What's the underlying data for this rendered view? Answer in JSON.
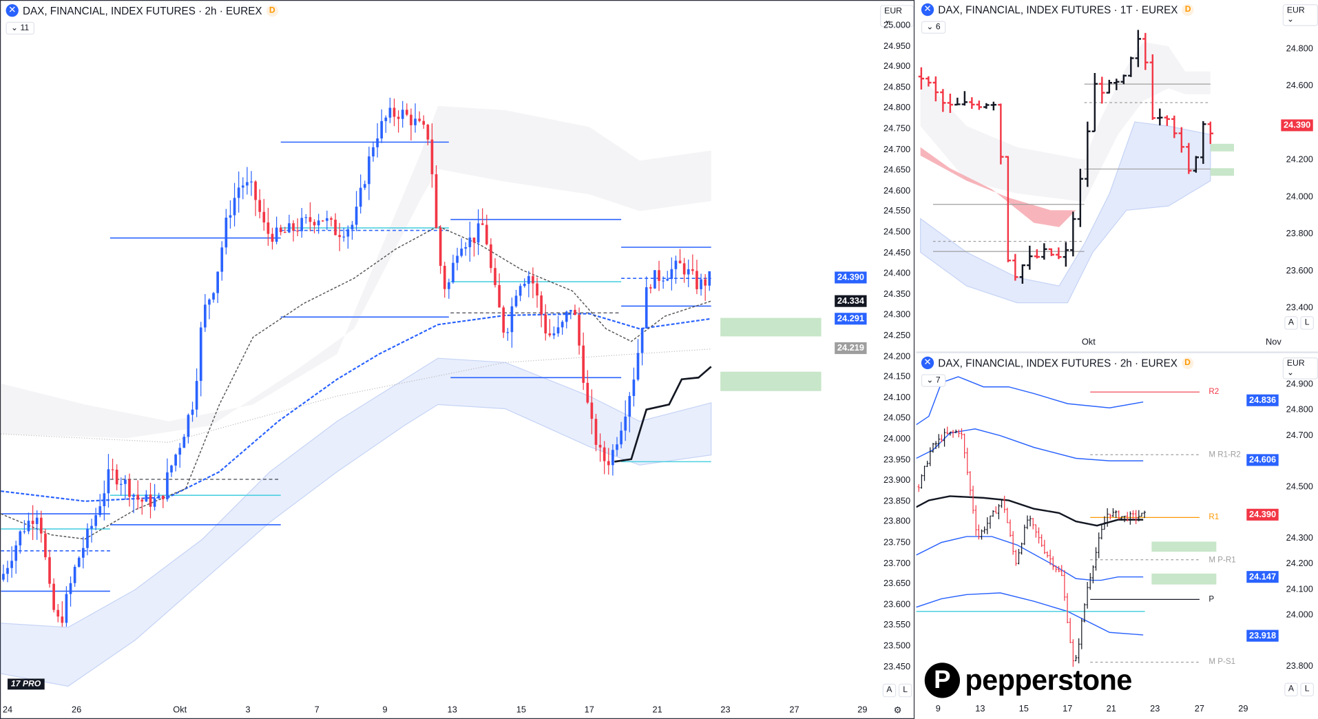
{
  "colors": {
    "up": "#131722",
    "down": "#f23645",
    "accent": "#2962ff",
    "cyan": "#4dd0e1",
    "zone": "#c8e6c9",
    "pivot_r": "#f23645",
    "pivot_r1": "#ff9800"
  },
  "left": {
    "title": "DAX, FINANCIAL, INDEX FUTURES · 2h · EUREX",
    "badge": "D",
    "collapse": "11",
    "currency": "EUR",
    "axis": [
      "25.000",
      "24.950",
      "24.900",
      "24.850",
      "24.800",
      "24.750",
      "24.700",
      "24.650",
      "24.600",
      "24.550",
      "24.500",
      "24.450",
      "24.400",
      "24.350",
      "24.300",
      "24.250",
      "24.200",
      "24.150",
      "24.100",
      "24.050",
      "24.000",
      "23.950",
      "23.900",
      "23.850",
      "23.800",
      "23.750",
      "23.700",
      "23.650",
      "23.600",
      "23.550",
      "23.500",
      "23.450"
    ],
    "price_labels": [
      {
        "text": "24.390",
        "value": 24390,
        "color": "#2962ff"
      },
      {
        "text": "24.334",
        "value": 24334,
        "color": "#131722"
      },
      {
        "text": "24.291",
        "value": 24291,
        "color": "#2962ff"
      },
      {
        "text": "24.219",
        "value": 24219,
        "color": "#9e9e9e"
      }
    ],
    "time_axis": [
      "24",
      "26",
      "Okt",
      "3",
      "7",
      "9",
      "13",
      "15",
      "17",
      "21",
      "23",
      "27",
      "29"
    ],
    "btn_a": "A",
    "btn_l": "L",
    "logo": "TV PRO"
  },
  "top_right": {
    "title": "DAX, FINANCIAL, INDEX FUTURES · 1T · EUREX",
    "badge": "D",
    "collapse": "6",
    "currency": "EUR",
    "axis": [
      {
        "t": "24.800",
        "v": 24800
      },
      {
        "t": "24.600",
        "v": 24600
      },
      {
        "t": "24.200",
        "v": 24200
      },
      {
        "t": "24.000",
        "v": 24000
      },
      {
        "t": "23.800",
        "v": 23800
      },
      {
        "t": "23.600",
        "v": 23600
      },
      {
        "t": "23.400",
        "v": 23400
      }
    ],
    "price_label": "24.390",
    "time_axis": [
      "Okt",
      "Nov"
    ],
    "btn_a": "A",
    "btn_l": "L"
  },
  "bottom_right": {
    "title": "DAX, FINANCIAL, INDEX FUTURES · 2h · EUREX",
    "badge": "D",
    "collapse": "7",
    "currency": "EUR",
    "axis": [
      {
        "t": "24.900",
        "v": 24900
      },
      {
        "t": "24.800",
        "v": 24800
      },
      {
        "t": "24.700",
        "v": 24700
      },
      {
        "t": "24.500",
        "v": 24500
      },
      {
        "t": "24.300",
        "v": 24300
      },
      {
        "t": "24.200",
        "v": 24200
      },
      {
        "t": "24.100",
        "v": 24100
      },
      {
        "t": "24.000",
        "v": 24000
      },
      {
        "t": "23.800",
        "v": 23800
      }
    ],
    "price_labels": [
      {
        "text": "24.836",
        "value": 24836,
        "color": "#2962ff"
      },
      {
        "text": "24.606",
        "value": 24606,
        "color": "#2962ff"
      },
      {
        "text": "24.390",
        "value": 24390,
        "color": "#f23645"
      },
      {
        "text": "24.147",
        "value": 24147,
        "color": "#2962ff"
      },
      {
        "text": "23.918",
        "value": 23918,
        "color": "#2962ff"
      }
    ],
    "pivots": [
      {
        "label": "R2",
        "value": 24870,
        "color": "#f23645"
      },
      {
        "label": "M R1-R2",
        "value": 24625,
        "color": "#9e9e9e"
      },
      {
        "label": "R1",
        "value": 24380,
        "color": "#ff9800"
      },
      {
        "label": "M P-R1",
        "value": 24215,
        "color": "#9e9e9e"
      },
      {
        "label": "P",
        "value": 24060,
        "color": "#131722"
      },
      {
        "label": "M P-S1",
        "value": 23815,
        "color": "#9e9e9e"
      }
    ],
    "time_axis": [
      "9",
      "13",
      "15",
      "17",
      "21",
      "23",
      "27",
      "29"
    ],
    "btn_a": "A",
    "btn_l": "L"
  },
  "branding": {
    "name": "pepperstone",
    "mark": "P"
  },
  "chart_data": [
    {
      "type": "candlestick",
      "name": "DAX 2h (left)",
      "ylim": [
        23450,
        25000
      ],
      "path": [
        [
          0,
          23660
        ],
        [
          25,
          23780
        ],
        [
          45,
          23830
        ],
        [
          60,
          23600
        ],
        [
          70,
          23550
        ],
        [
          90,
          23700
        ],
        [
          110,
          23800
        ],
        [
          130,
          23920
        ],
        [
          145,
          23900
        ],
        [
          165,
          23850
        ],
        [
          190,
          23850
        ],
        [
          200,
          23920
        ],
        [
          215,
          24000
        ],
        [
          230,
          24100
        ],
        [
          240,
          24300
        ],
        [
          255,
          24380
        ],
        [
          270,
          24540
        ],
        [
          285,
          24620
        ],
        [
          300,
          24600
        ],
        [
          315,
          24500
        ],
        [
          330,
          24490
        ],
        [
          350,
          24510
        ],
        [
          380,
          24540
        ],
        [
          400,
          24500
        ],
        [
          420,
          24520
        ],
        [
          435,
          24650
        ],
        [
          445,
          24730
        ],
        [
          460,
          24780
        ],
        [
          475,
          24790
        ],
        [
          490,
          24770
        ],
        [
          510,
          24730
        ],
        [
          520,
          24450
        ],
        [
          530,
          24350
        ],
        [
          545,
          24480
        ],
        [
          560,
          24480
        ],
        [
          575,
          24520
        ],
        [
          585,
          24380
        ],
        [
          600,
          24250
        ],
        [
          615,
          24380
        ],
        [
          630,
          24400
        ],
        [
          650,
          24250
        ],
        [
          665,
          24260
        ],
        [
          680,
          24330
        ],
        [
          690,
          24200
        ],
        [
          700,
          24050
        ],
        [
          715,
          23950
        ],
        [
          725,
          23950
        ],
        [
          740,
          24050
        ],
        [
          755,
          24170
        ],
        [
          770,
          24380
        ],
        [
          790,
          24400
        ],
        [
          810,
          24420
        ],
        [
          830,
          24370
        ],
        [
          845,
          24390
        ]
      ]
    },
    {
      "type": "ohlc",
      "name": "DAX 1T (top right)",
      "ylim": [
        23400,
        24900
      ],
      "path": [
        [
          0,
          24650
        ],
        [
          30,
          24480
        ],
        [
          60,
          24500
        ],
        [
          90,
          24520
        ],
        [
          105,
          23560
        ],
        [
          125,
          23650
        ],
        [
          150,
          23700
        ],
        [
          170,
          23650
        ],
        [
          190,
          24100
        ],
        [
          205,
          24600
        ],
        [
          220,
          24580
        ],
        [
          240,
          24620
        ],
        [
          262,
          24880
        ],
        [
          275,
          24450
        ],
        [
          295,
          24450
        ],
        [
          320,
          24100
        ],
        [
          335,
          24400
        ],
        [
          348,
          24360
        ]
      ]
    },
    {
      "type": "ohlc",
      "name": "DAX 2h (bottom right)",
      "ylim": [
        23800,
        24900
      ],
      "path": [
        [
          0,
          24500
        ],
        [
          15,
          24650
        ],
        [
          30,
          24700
        ],
        [
          50,
          24720
        ],
        [
          70,
          24300
        ],
        [
          100,
          24450
        ],
        [
          115,
          24200
        ],
        [
          130,
          24380
        ],
        [
          150,
          24250
        ],
        [
          170,
          24150
        ],
        [
          185,
          23780
        ],
        [
          200,
          24100
        ],
        [
          215,
          24300
        ],
        [
          225,
          24400
        ],
        [
          245,
          24380
        ],
        [
          270,
          24390
        ]
      ]
    }
  ]
}
